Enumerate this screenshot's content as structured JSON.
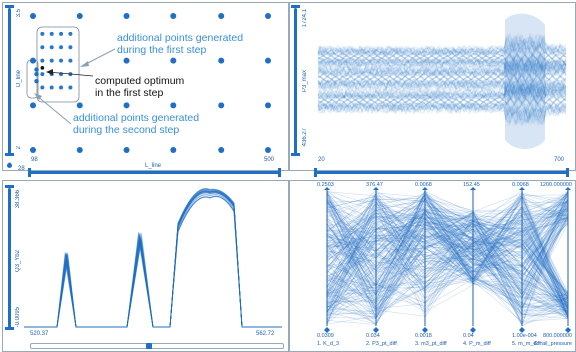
{
  "colors": {
    "accent": "#1f6fc6",
    "light": "#9ec8ef",
    "border": "#9aa9b8"
  },
  "panel_scatter": {
    "y_axis": {
      "label": "D_line",
      "top": "3.5",
      "bottom": "2"
    },
    "x_axis": {
      "label": "L_line",
      "left": "98",
      "right": "500"
    },
    "small_labels": [
      "9",
      "28"
    ],
    "annotations": {
      "first": "additional points generated during the first step",
      "optimum": "computed optimum in the first step",
      "second": "additional points generated during the second step"
    },
    "chart_data": {
      "type": "scatter",
      "xlabel": "L_line",
      "ylabel": "D_line",
      "xlim": [
        98,
        500
      ],
      "ylim": [
        2,
        3.5
      ],
      "series": [
        {
          "points": [
            [
              98,
              3.5
            ],
            [
              178,
              3.5
            ],
            [
              258,
              3.5
            ],
            [
              338,
              3.5
            ],
            [
              420,
              3.5
            ],
            [
              500,
              3.5
            ],
            [
              98,
              3.0
            ],
            [
              258,
              3.0
            ],
            [
              338,
              3.0
            ],
            [
              420,
              3.0
            ],
            [
              500,
              3.0
            ],
            [
              98,
              2.5
            ],
            [
              178,
              2.5
            ],
            [
              258,
              2.5
            ],
            [
              338,
              2.5
            ],
            [
              420,
              2.5
            ],
            [
              500,
              2.5
            ],
            [
              98,
              2.0
            ],
            [
              178,
              2.0
            ],
            [
              258,
              2.0
            ],
            [
              338,
              2.0
            ],
            [
              420,
              2.0
            ],
            [
              500,
              2.0
            ]
          ]
        },
        {
          "points": [
            [
              114,
              3.3
            ],
            [
              130,
              3.3
            ],
            [
              146,
              3.3
            ],
            [
              162,
              3.3
            ],
            [
              114,
              3.15
            ],
            [
              130,
              3.15
            ],
            [
              146,
              3.15
            ],
            [
              162,
              3.15
            ],
            [
              114,
              3.0
            ],
            [
              130,
              3.0
            ],
            [
              146,
              3.0
            ],
            [
              162,
              3.0
            ],
            [
              114,
              2.85
            ],
            [
              130,
              2.85
            ],
            [
              146,
              2.85
            ],
            [
              162,
              2.85
            ],
            [
              114,
              2.7
            ],
            [
              130,
              2.7
            ],
            [
              146,
              2.7
            ],
            [
              162,
              2.7
            ]
          ]
        },
        {
          "points": [
            [
              104,
              2.9
            ],
            [
              104,
              2.85
            ],
            [
              104,
              2.77
            ]
          ]
        },
        {
          "points": [
            [
              114,
              2.92
            ]
          ]
        }
      ]
    }
  },
  "panel_signal": {
    "y_axis": {
      "label": "P3_max",
      "top": "1724.1",
      "bottom": "436.27"
    },
    "x_axis": {
      "left": "20",
      "right": "700"
    },
    "chart_data": {
      "type": "area",
      "xlim": [
        20,
        700
      ],
      "ylim": [
        436.27,
        1724.1
      ]
    }
  },
  "panel_peaks": {
    "y_axis": {
      "label": "Q3_Yb2",
      "top": "38.366",
      "bottom": "-0.0095"
    },
    "x_axis": {
      "left": "520.37",
      "right": "562.72"
    },
    "chart_data": {
      "type": "line",
      "xlim": [
        520.37,
        562.72
      ],
      "ylim": [
        -0.0095,
        38.366
      ]
    }
  },
  "panel_parallel": {
    "axes": [
      {
        "name": "1. K_d_3",
        "top": "0.2503",
        "bottom": "0.0309"
      },
      {
        "name": "2. P3_pt_diff",
        "top": "376.47",
        "bottom": "0.034"
      },
      {
        "name": "3. m3_pt_diff",
        "top": "0.0068",
        "bottom": "0.0018"
      },
      {
        "name": "4. P_m_diff",
        "top": "152.45",
        "bottom": "0.04"
      },
      {
        "name": "5. m_m_diff",
        "top": "0.0068",
        "bottom": "1.00e-004"
      },
      {
        "name": "6. rail_pressure",
        "top": "1200.000000",
        "bottom": "800.000000"
      }
    ]
  }
}
